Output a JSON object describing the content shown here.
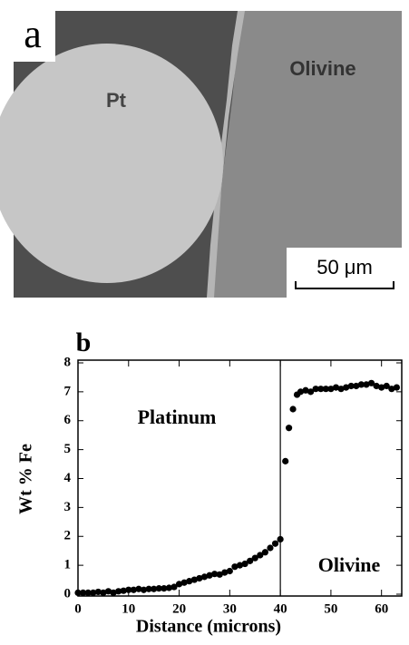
{
  "panel_a": {
    "label": "a",
    "phase_left": "Pt",
    "phase_right": "Olivine",
    "scale_bar": "50 μm"
  },
  "chart_data": {
    "type": "scatter",
    "panel_label": "b",
    "x_label": "Distance  (microns)",
    "y_label": "Wt  %  Fe",
    "annotations": [
      "Platinum",
      "Olivine"
    ],
    "boundary_x": 40,
    "x": [
      0,
      1,
      2,
      3,
      4,
      5,
      6,
      7,
      8,
      9,
      10,
      11,
      12,
      13,
      14,
      15,
      16,
      17,
      18,
      19,
      20,
      21,
      22,
      23,
      24,
      25,
      26,
      27,
      28,
      29,
      30,
      31,
      32,
      33,
      34,
      35,
      36,
      37,
      38,
      39,
      40,
      41,
      41.7,
      42.5,
      43.3,
      44,
      45,
      46,
      47,
      48,
      49,
      50,
      51,
      52,
      53,
      54,
      55,
      56,
      57,
      58,
      59,
      60,
      61,
      62,
      63
    ],
    "values": [
      0.05,
      0.05,
      0.05,
      0.05,
      0.08,
      0.05,
      0.1,
      0.05,
      0.1,
      0.12,
      0.15,
      0.15,
      0.18,
      0.15,
      0.18,
      0.18,
      0.2,
      0.2,
      0.22,
      0.25,
      0.35,
      0.4,
      0.45,
      0.5,
      0.55,
      0.6,
      0.65,
      0.7,
      0.68,
      0.75,
      0.8,
      0.95,
      1.0,
      1.05,
      1.15,
      1.25,
      1.35,
      1.45,
      1.6,
      1.75,
      1.9,
      4.6,
      5.75,
      6.4,
      6.9,
      7.0,
      7.05,
      7.0,
      7.1,
      7.1,
      7.1,
      7.1,
      7.15,
      7.1,
      7.15,
      7.2,
      7.2,
      7.25,
      7.25,
      7.3,
      7.2,
      7.15,
      7.2,
      7.1,
      7.15
    ],
    "color": "#000000",
    "xlim": [
      0,
      64
    ],
    "xticks": [
      0,
      10,
      20,
      30,
      40,
      50,
      60
    ],
    "ylim": [
      0,
      8
    ],
    "yticks": [
      0,
      1,
      2,
      3,
      4,
      5,
      6,
      7,
      8
    ]
  }
}
